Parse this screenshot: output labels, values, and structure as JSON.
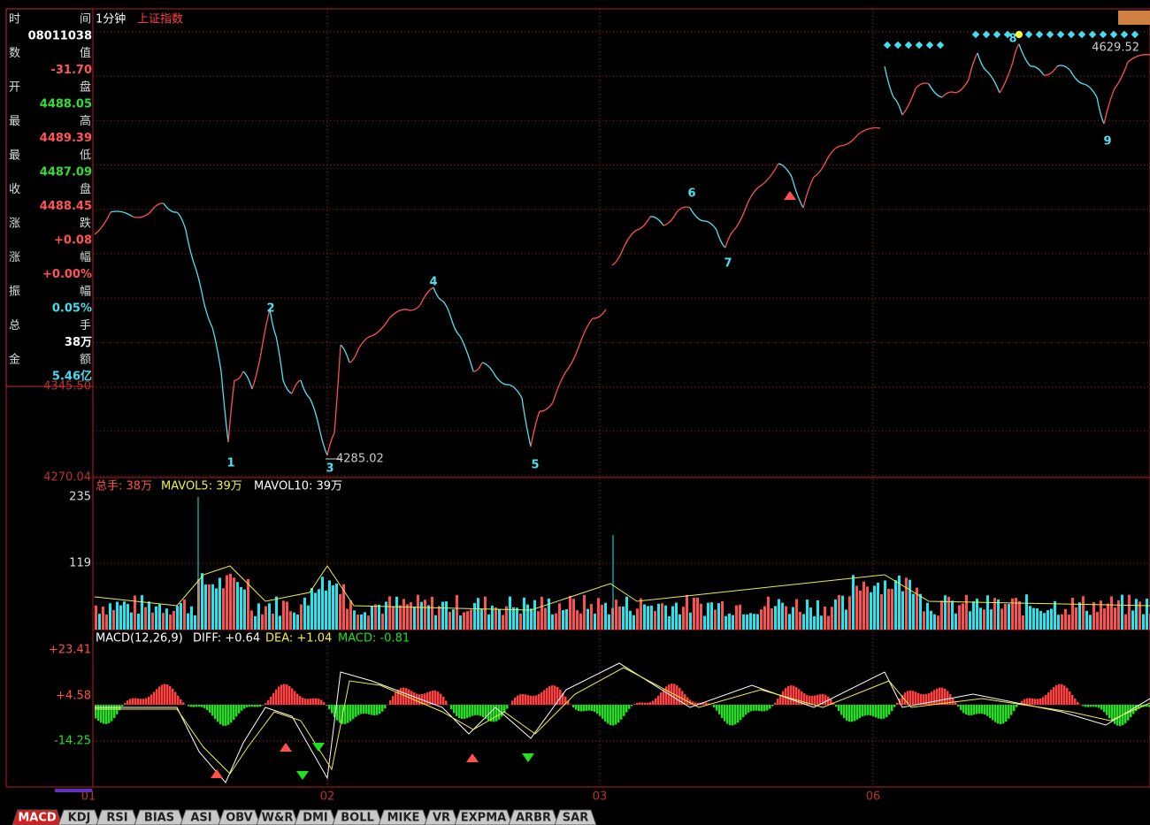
{
  "header": {
    "period": "1分钟",
    "index": "上证指数"
  },
  "info": [
    {
      "left": "时",
      "right": "间",
      "value": "08011038",
      "color": "#ffffff"
    },
    {
      "left": "数",
      "right": "值",
      "value": "-31.70",
      "color": "#ff5555"
    },
    {
      "left": "开",
      "right": "盘",
      "value": "4488.05",
      "color": "#33dd33"
    },
    {
      "left": "最",
      "right": "高",
      "value": "4489.39",
      "color": "#ff5555"
    },
    {
      "left": "最",
      "right": "低",
      "value": "4487.09",
      "color": "#33dd33"
    },
    {
      "left": "收",
      "right": "盘",
      "value": "4488.45",
      "color": "#ff5555"
    },
    {
      "left": "涨",
      "right": "跌",
      "value": "+0.08",
      "color": "#ff5555"
    },
    {
      "left": "涨",
      "right": "幅",
      "value": "+0.00%",
      "color": "#ff5555"
    },
    {
      "left": "振",
      "right": "幅",
      "value": "0.05%",
      "color": "#44ddee"
    },
    {
      "left": "总",
      "right": "手",
      "value": "38万",
      "color": "#ffffff"
    },
    {
      "left": "金",
      "right": "额",
      "value": "5.46亿",
      "color": "#44ddee"
    }
  ],
  "price_axis": [
    "4345.50",
    "4270.04"
  ],
  "annotations": {
    "low": "4285.02",
    "high": "4629.52"
  },
  "waves": [
    "1",
    "2",
    "3",
    "4",
    "5",
    "6",
    "7",
    "8",
    "9"
  ],
  "volume": {
    "legend": [
      "总手: 38万",
      "MAVOL5: 39万",
      "MAVOL10: 39万"
    ],
    "axis": [
      "235",
      "119"
    ]
  },
  "macd": {
    "legend": [
      "MACD(12,26,9)",
      "DIFF: +0.64",
      "DEA: +1.04",
      "MACD: -0.81"
    ],
    "axis": [
      "+23.41",
      "+4.58",
      "-14.25"
    ]
  },
  "dates": [
    "01",
    "02",
    "03",
    "06"
  ],
  "tabs": [
    "MACD",
    "KDJ",
    "RSI",
    "BIAS",
    "ASI",
    "OBV",
    "W&R",
    "DMI",
    "BOLL",
    "MIKE",
    "VR",
    "EXPMA",
    "ARBR",
    "SAR"
  ]
}
